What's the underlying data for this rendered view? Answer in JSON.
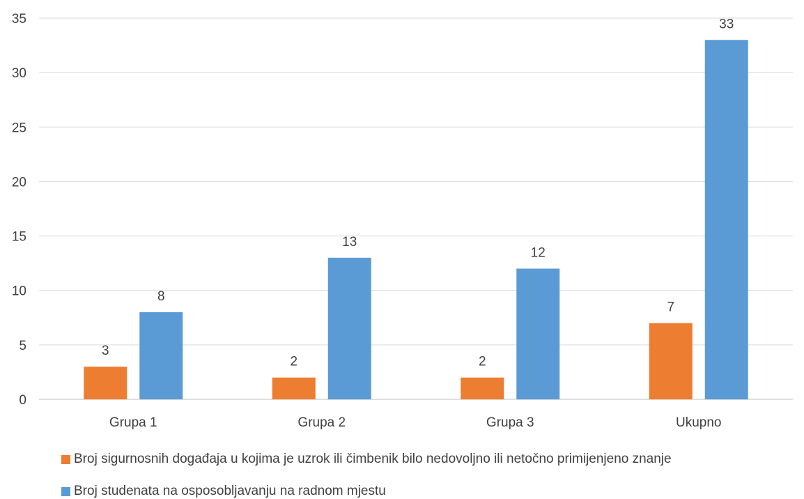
{
  "chart_data": {
    "type": "bar",
    "categories": [
      "Grupa 1",
      "Grupa 2",
      "Grupa 3",
      "Ukupno"
    ],
    "series": [
      {
        "name": "Broj sigurnosnih događaja u kojima je uzrok ili čimbenik bilo nedovoljno ili netočno primijenjeno znanje",
        "color": "#ED7D31",
        "values": [
          3,
          2,
          2,
          7
        ]
      },
      {
        "name": "Broj studenata na osposobljavanju na radnom mjestu",
        "color": "#5B9BD5",
        "values": [
          8,
          13,
          12,
          33
        ]
      }
    ],
    "ylim": [
      0,
      35
    ],
    "yticks": [
      0,
      5,
      10,
      15,
      20,
      25,
      30,
      35
    ],
    "grid": true,
    "data_labels": true,
    "legend_position": "bottom-left",
    "title": "",
    "xlabel": "",
    "ylabel": ""
  }
}
